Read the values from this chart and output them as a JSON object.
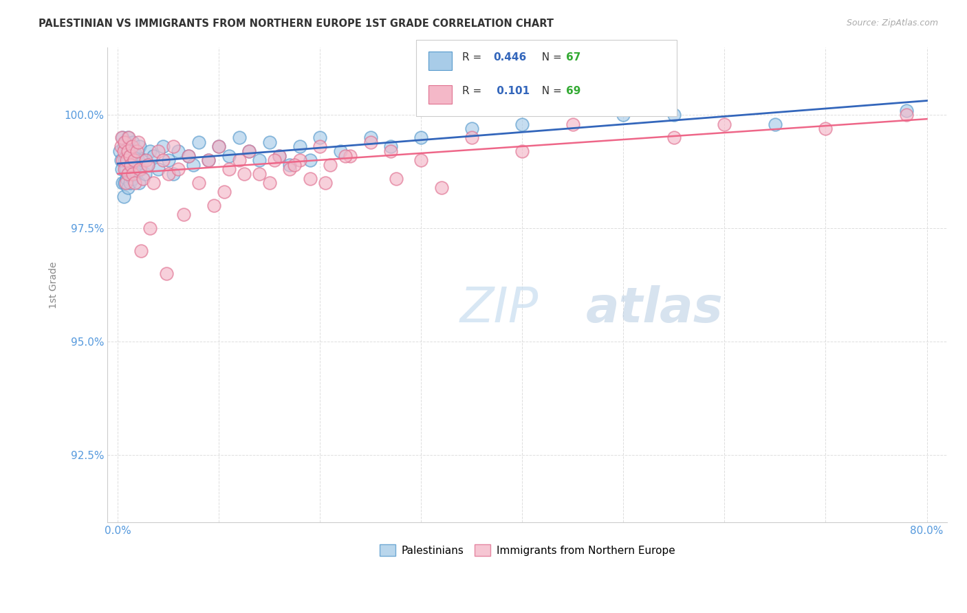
{
  "title": "PALESTINIAN VS IMMIGRANTS FROM NORTHERN EUROPE 1ST GRADE CORRELATION CHART",
  "source": "Source: ZipAtlas.com",
  "ylabel": "1st Grade",
  "xlim": [
    -1,
    82
  ],
  "ylim": [
    91.0,
    101.5
  ],
  "xticks": [
    0,
    10,
    20,
    30,
    40,
    50,
    60,
    70,
    80
  ],
  "xticklabels": [
    "0.0%",
    "",
    "",
    "",
    "",
    "",
    "",
    "",
    "80.0%"
  ],
  "yticks": [
    92.5,
    95.0,
    97.5,
    100.0
  ],
  "yticklabels": [
    "92.5%",
    "95.0%",
    "97.5%",
    "100.0%"
  ],
  "blue_R": 0.446,
  "blue_N": 67,
  "pink_R": 0.101,
  "pink_N": 69,
  "blue_color": "#a8cce8",
  "blue_edge_color": "#5599cc",
  "pink_color": "#f4b8c8",
  "pink_edge_color": "#e07090",
  "blue_line_color": "#3366bb",
  "pink_line_color": "#ee6688",
  "title_color": "#333333",
  "axis_label_color": "#888888",
  "tick_color": "#5599dd",
  "grid_color": "#dddddd",
  "background_color": "#ffffff",
  "legend_text_color": "#3366bb",
  "legend_N_color": "#33aa33",
  "blue_scatter_x": [
    0.2,
    0.3,
    0.4,
    0.5,
    0.5,
    0.6,
    0.6,
    0.7,
    0.7,
    0.8,
    0.8,
    0.9,
    0.9,
    1.0,
    1.0,
    1.0,
    1.1,
    1.1,
    1.2,
    1.2,
    1.3,
    1.4,
    1.5,
    1.5,
    1.6,
    1.7,
    1.8,
    1.9,
    2.0,
    2.1,
    2.2,
    2.3,
    2.5,
    2.7,
    3.0,
    3.2,
    3.5,
    4.0,
    4.5,
    5.0,
    5.5,
    6.0,
    7.0,
    7.5,
    8.0,
    9.0,
    10.0,
    11.0,
    12.0,
    13.0,
    14.0,
    15.0,
    16.0,
    17.0,
    18.0,
    19.0,
    20.0,
    22.0,
    25.0,
    27.0,
    30.0,
    35.0,
    40.0,
    50.0,
    55.0,
    65.0,
    78.0
  ],
  "blue_scatter_y": [
    99.2,
    99.0,
    98.8,
    99.5,
    98.5,
    99.3,
    98.2,
    99.0,
    98.5,
    99.4,
    98.8,
    99.2,
    98.6,
    99.5,
    99.0,
    98.4,
    99.3,
    98.7,
    99.1,
    98.5,
    99.0,
    98.8,
    99.4,
    98.6,
    99.2,
    98.9,
    98.7,
    99.1,
    99.0,
    98.5,
    99.3,
    98.8,
    99.0,
    98.7,
    98.9,
    99.2,
    99.1,
    98.8,
    99.3,
    99.0,
    98.7,
    99.2,
    99.1,
    98.9,
    99.4,
    99.0,
    99.3,
    99.1,
    99.5,
    99.2,
    99.0,
    99.4,
    99.1,
    98.9,
    99.3,
    99.0,
    99.5,
    99.2,
    99.5,
    99.3,
    99.5,
    99.7,
    99.8,
    100.0,
    100.0,
    99.8,
    100.1
  ],
  "pink_scatter_x": [
    0.3,
    0.4,
    0.5,
    0.6,
    0.7,
    0.7,
    0.8,
    0.9,
    1.0,
    1.0,
    1.1,
    1.2,
    1.3,
    1.4,
    1.5,
    1.6,
    1.7,
    1.9,
    2.0,
    2.2,
    2.5,
    2.8,
    3.0,
    3.5,
    4.0,
    4.5,
    5.0,
    5.5,
    6.0,
    7.0,
    8.0,
    9.0,
    10.0,
    11.0,
    12.0,
    13.0,
    14.0,
    15.0,
    16.0,
    17.0,
    18.0,
    19.0,
    20.0,
    21.0,
    23.0,
    25.0,
    27.0,
    30.0,
    35.0,
    40.0,
    45.0,
    50.0,
    55.0,
    60.0,
    70.0,
    78.0,
    3.2,
    6.5,
    10.5,
    15.5,
    20.5,
    4.8,
    2.3,
    9.5,
    12.5,
    17.5,
    22.5,
    27.5,
    32.0
  ],
  "pink_scatter_y": [
    99.3,
    99.5,
    99.0,
    99.2,
    98.8,
    99.4,
    98.5,
    99.0,
    99.2,
    98.7,
    99.5,
    99.1,
    98.9,
    99.3,
    98.7,
    99.0,
    98.5,
    99.2,
    99.4,
    98.8,
    98.6,
    99.0,
    98.9,
    98.5,
    99.2,
    99.0,
    98.7,
    99.3,
    98.8,
    99.1,
    98.5,
    99.0,
    99.3,
    98.8,
    99.0,
    99.2,
    98.7,
    98.5,
    99.1,
    98.8,
    99.0,
    98.6,
    99.3,
    98.9,
    99.1,
    99.4,
    99.2,
    99.0,
    99.5,
    99.2,
    99.8,
    100.2,
    99.5,
    99.8,
    99.7,
    100.0,
    97.5,
    97.8,
    98.3,
    99.0,
    98.5,
    96.5,
    97.0,
    98.0,
    98.7,
    98.9,
    99.1,
    98.6,
    98.4
  ]
}
